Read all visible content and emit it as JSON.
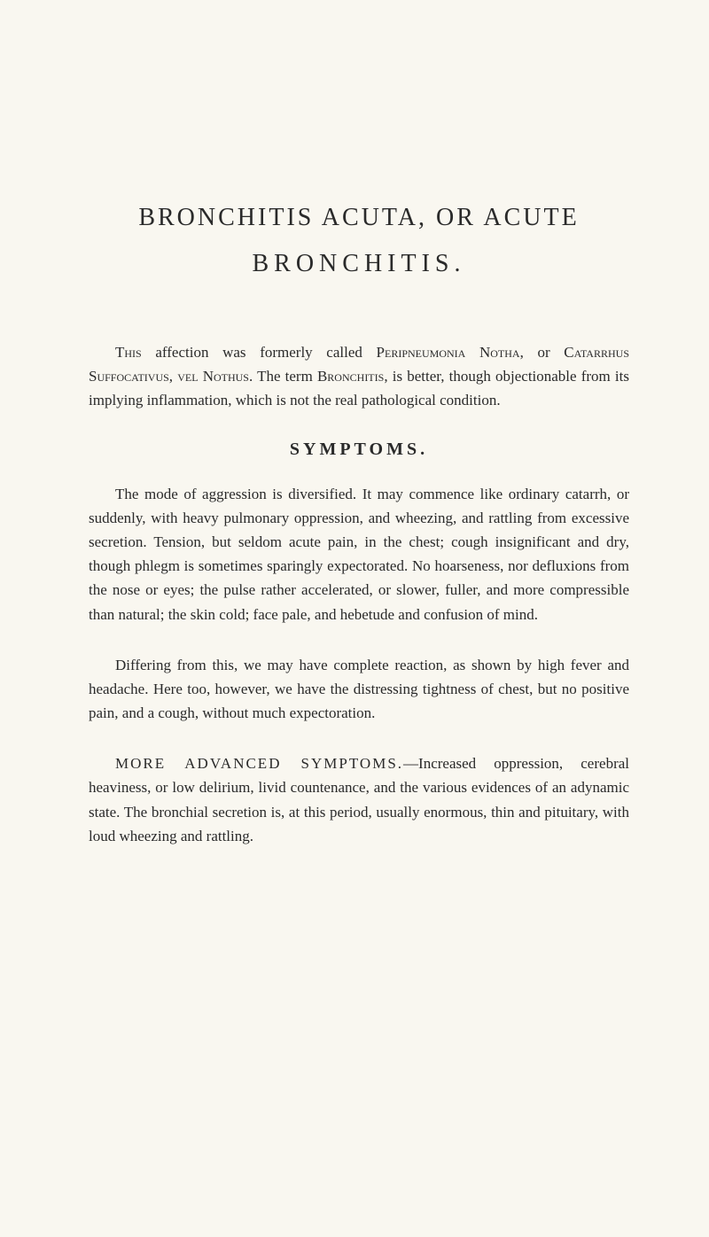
{
  "title": {
    "main": "BRONCHITIS ACUTA, OR ACUTE",
    "sub": "BRONCHITIS."
  },
  "intro": {
    "smallcaps_lead": "This",
    "text_part1": " affection was formerly called ",
    "smallcaps_1": "Peripneumonia Notha",
    "text_part2": ", or ",
    "smallcaps_2": "Catarrhus Suffocativus, vel Nothus",
    "text_part3": ". The term ",
    "smallcaps_3": "Bronchitis",
    "text_part4": ", is better, though objectionable from its implying inflammation, which is not the real pathological condition."
  },
  "symptoms_heading": "SYMPTOMS.",
  "symptoms_p1": "The mode of aggression is diversified. It may commence like ordinary catarrh, or suddenly, with heavy pulmonary oppression, and wheezing, and rattling from excessive secretion. Tension, but seldom acute pain, in the chest; cough insignificant and dry, though phlegm is sometimes sparingly expectorated. No hoarseness, nor defluxions from the nose or eyes; the pulse rather accelerated, or slower, fuller, and more compressible than natural; the skin cold; face pale, and hebetude and confusion of mind.",
  "symptoms_p2": "Differing from this, we may have complete reaction, as shown by high fever and headache. Here too, however, we have the distressing tightness of chest, but no positive pain, and a cough, without much expectoration.",
  "advanced": {
    "heading": "MORE ADVANCED SYMPTOMS.",
    "text": "—Increased oppression, cerebral heaviness, or low delirium, livid countenance, and the various evidences of an adynamic state. The bronchial secretion is, at this period, usually enormous, thin and pituitary, with loud wheezing and rattling."
  },
  "colors": {
    "background": "#f9f7f0",
    "text": "#2a2a2a"
  },
  "typography": {
    "body_fontsize": 17,
    "title_fontsize": 28,
    "heading_fontsize": 20,
    "line_height": 1.6,
    "font_family": "Georgia, Times New Roman, serif"
  }
}
